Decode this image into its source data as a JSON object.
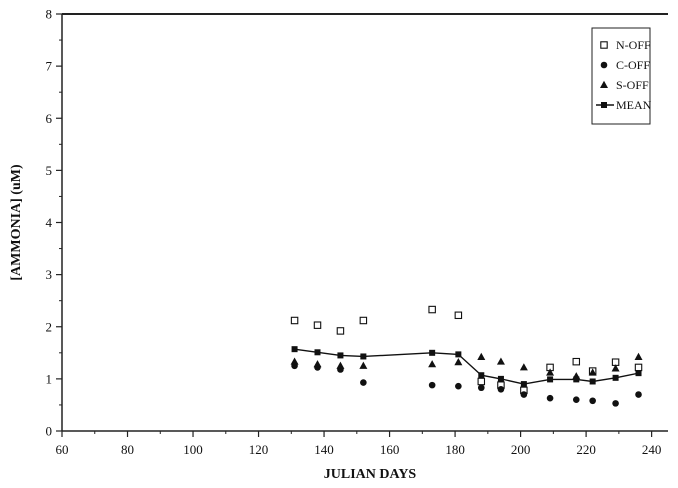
{
  "chart_data": {
    "type": "scatter",
    "xlabel": "JULIAN DAYS",
    "ylabel": "[AMMONIA] (uM)",
    "xlim": [
      60,
      245
    ],
    "ylim": [
      0,
      8
    ],
    "xticks": [
      60,
      80,
      100,
      120,
      140,
      160,
      180,
      200,
      220,
      240
    ],
    "yticks": [
      0,
      1,
      2,
      3,
      4,
      5,
      6,
      7,
      8
    ],
    "xtick_labels": [
      "60",
      "80",
      "100",
      "120",
      "140",
      "160",
      "180",
      "200",
      "220",
      "240"
    ],
    "ytick_labels": [
      "0",
      "1",
      "2",
      "3",
      "4",
      "5",
      "6",
      "7",
      "8"
    ],
    "legend_position": "top-right",
    "series": [
      {
        "name": "N-OFF",
        "marker": "open-square",
        "x": [
          131,
          138,
          145,
          152,
          173,
          181,
          188,
          194,
          201,
          209,
          217,
          222,
          229,
          236
        ],
        "y": [
          2.12,
          2.03,
          1.92,
          2.12,
          2.33,
          2.22,
          0.95,
          0.88,
          0.78,
          1.22,
          1.33,
          1.15,
          1.32,
          1.22
        ]
      },
      {
        "name": "C-OFF",
        "marker": "filled-circle",
        "x": [
          131,
          138,
          145,
          152,
          173,
          181,
          188,
          194,
          201,
          209,
          217,
          222,
          229,
          236
        ],
        "y": [
          1.25,
          1.22,
          1.18,
          0.93,
          0.88,
          0.86,
          0.83,
          0.8,
          0.7,
          0.63,
          0.6,
          0.58,
          0.53,
          0.7
        ]
      },
      {
        "name": "S-OFF",
        "marker": "filled-triangle",
        "x": [
          131,
          138,
          145,
          152,
          173,
          181,
          188,
          194,
          201,
          209,
          217,
          222,
          229,
          236
        ],
        "y": [
          1.33,
          1.28,
          1.25,
          1.25,
          1.28,
          1.32,
          1.42,
          1.33,
          1.22,
          1.12,
          1.05,
          1.12,
          1.2,
          1.42
        ]
      },
      {
        "name": "MEAN",
        "marker": "line-with-filled-square",
        "x": [
          131,
          138,
          145,
          152,
          173,
          181,
          188,
          194,
          201,
          209,
          217,
          222,
          229,
          236
        ],
        "y": [
          1.57,
          1.51,
          1.45,
          1.43,
          1.5,
          1.47,
          1.07,
          1.0,
          0.9,
          0.99,
          0.99,
          0.95,
          1.02,
          1.11
        ]
      }
    ]
  }
}
